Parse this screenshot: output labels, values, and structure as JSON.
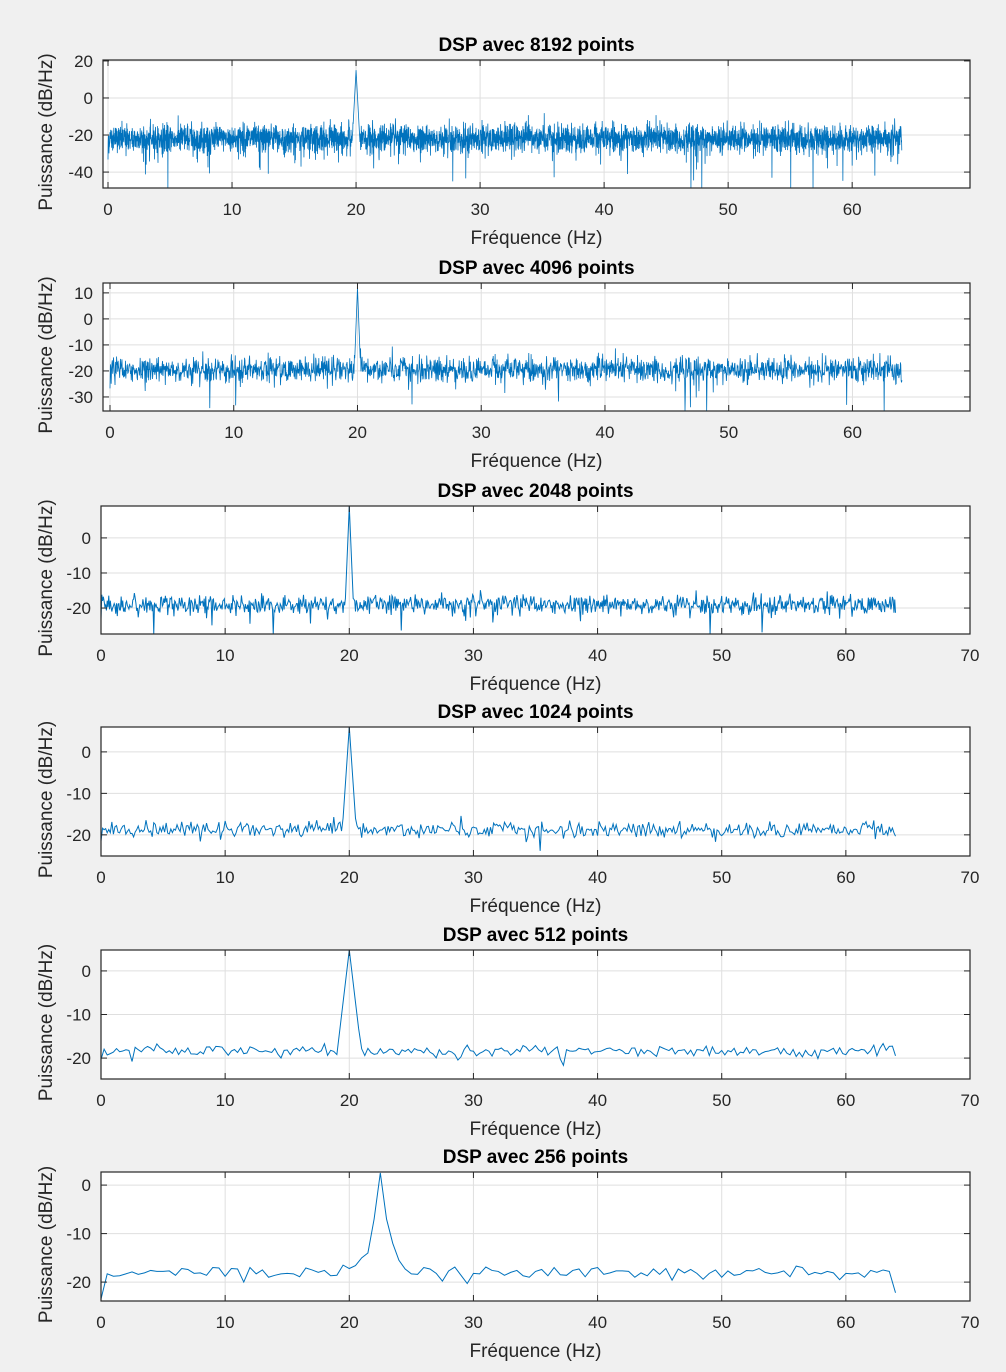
{
  "chart_data": [
    {
      "type": "line",
      "title": "DSP avec 8192 points",
      "xlabel": "Fréquence (Hz)",
      "ylabel": "Puissance (dB/Hz)",
      "xlim": [
        0,
        69.5
      ],
      "ylim": [
        -48.6,
        20.5
      ],
      "xticks": [
        0,
        10,
        20,
        30,
        40,
        50,
        60
      ],
      "yticks": [
        20,
        0,
        -20,
        -40
      ],
      "grid": true,
      "color": "#0072BD",
      "series": {
        "name": "DSP 8192",
        "x_start": 0,
        "x_end": 64,
        "n_points": 4097,
        "noise_floor_db": -22,
        "noise_spread_db": 7,
        "peak_freq_hz": 20,
        "peak_db": 15
      }
    },
    {
      "type": "line",
      "title": "DSP avec 4096 points",
      "xlabel": "Fréquence (Hz)",
      "ylabel": "Puissance (dB/Hz)",
      "xlim": [
        0,
        69.5
      ],
      "ylim": [
        -35.4,
        13.8
      ],
      "xticks": [
        0,
        10,
        20,
        30,
        40,
        50,
        60
      ],
      "yticks": [
        10,
        0,
        -10,
        -20,
        -30
      ],
      "grid": true,
      "color": "#0072BD",
      "series": {
        "name": "DSP 4096",
        "x_start": 0,
        "x_end": 64,
        "n_points": 2049,
        "noise_floor_db": -19.5,
        "noise_spread_db": 4.5,
        "peak_freq_hz": 20,
        "peak_db": 12
      }
    },
    {
      "type": "line",
      "title": "DSP avec 2048 points",
      "xlabel": "Fréquence (Hz)",
      "ylabel": "Puissance (dB/Hz)",
      "xlim": [
        0,
        70
      ],
      "ylim": [
        -27.4,
        9.1
      ],
      "xticks": [
        0,
        10,
        20,
        30,
        40,
        50,
        60,
        70
      ],
      "yticks": [
        0,
        -10,
        -20
      ],
      "grid": true,
      "color": "#0072BD",
      "series": {
        "name": "DSP 2048",
        "x_start": 0,
        "x_end": 64,
        "n_points": 1025,
        "noise_floor_db": -19,
        "noise_spread_db": 2.6,
        "peak_freq_hz": 20,
        "peak_db": 9
      }
    },
    {
      "type": "line",
      "title": "DSP avec 1024 points",
      "xlabel": "Fréquence (Hz)",
      "ylabel": "Puissance (dB/Hz)",
      "xlim": [
        0,
        70
      ],
      "ylim": [
        -25.1,
        6.0
      ],
      "xticks": [
        0,
        10,
        20,
        30,
        40,
        50,
        60,
        70
      ],
      "yticks": [
        0,
        -10,
        -20
      ],
      "grid": true,
      "color": "#0072BD",
      "series": {
        "name": "DSP 1024",
        "x_start": 0,
        "x_end": 64,
        "n_points": 513,
        "noise_floor_db": -18.8,
        "noise_spread_db": 1.7,
        "peak_freq_hz": 20,
        "peak_db": 6
      }
    },
    {
      "type": "line",
      "title": "DSP avec 512 points",
      "xlabel": "Fréquence (Hz)",
      "ylabel": "Puissance (dB/Hz)",
      "xlim": [
        0,
        70
      ],
      "ylim": [
        -24.8,
        4.8
      ],
      "xticks": [
        0,
        10,
        20,
        30,
        40,
        50,
        60,
        70
      ],
      "yticks": [
        0,
        -10,
        -20
      ],
      "grid": true,
      "color": "#0072BD",
      "series": {
        "name": "DSP 512",
        "x_start": 0,
        "x_end": 64,
        "n_points": 257,
        "noise_floor_db": -18.4,
        "noise_spread_db": 1.2,
        "peak_freq_hz": 20,
        "peak_db": 4.8
      }
    },
    {
      "type": "line",
      "title": "DSP avec 256 points",
      "xlabel": "Fréquence (Hz)",
      "ylabel": "Puissance (dB/Hz)",
      "xlim": [
        0,
        70
      ],
      "ylim": [
        -23.9,
        2.7
      ],
      "xticks": [
        0,
        10,
        20,
        30,
        40,
        50,
        60,
        70
      ],
      "yticks": [
        0,
        -10,
        -20
      ],
      "grid": true,
      "color": "#0072BD",
      "series": {
        "name": "DSP 256",
        "x_start": 0,
        "x_end": 64,
        "n_points": 129,
        "values": [
          -23.5,
          -18.3,
          -18.8,
          -18.7,
          -18.3,
          -17.9,
          -18.4,
          -18.1,
          -17.6,
          -17.8,
          -17.8,
          -17.7,
          -18.6,
          -17.2,
          -17.4,
          -18.2,
          -18.1,
          -18.6,
          -17.0,
          -17.1,
          -18.8,
          -17.2,
          -17.3,
          -20.0,
          -17.0,
          -18.3,
          -17.5,
          -19.0,
          -18.6,
          -18.3,
          -18.2,
          -18.3,
          -18.9,
          -17.1,
          -17.5,
          -18.0,
          -17.6,
          -18.7,
          -18.6,
          -16.5,
          -17.2,
          -16.6,
          -15.0,
          -14.0,
          -7.0,
          2.5,
          -7.0,
          -12.0,
          -15.5,
          -17.3,
          -18.3,
          -18.4,
          -17.0,
          -17.3,
          -18.2,
          -19.8,
          -17.7,
          -16.9,
          -18.6,
          -20.3,
          -18.2,
          -18.3,
          -16.9,
          -17.6,
          -17.8,
          -18.6,
          -18.0,
          -17.6,
          -18.7,
          -19.0,
          -17.8,
          -17.4,
          -18.7,
          -17.0,
          -18.5,
          -18.6,
          -17.6,
          -17.3,
          -18.9,
          -17.3,
          -17.0,
          -18.4,
          -18.1,
          -17.7,
          -17.7,
          -17.8,
          -19.0,
          -18.1,
          -18.7,
          -17.3,
          -18.4,
          -17.2,
          -19.6,
          -17.3,
          -18.1,
          -17.4,
          -18.2,
          -19.4,
          -18.2,
          -17.5,
          -19.0,
          -17.7,
          -18.6,
          -18.4,
          -17.6,
          -17.7,
          -17.2,
          -18.0,
          -18.3,
          -18.1,
          -17.7,
          -18.9,
          -16.7,
          -17.0,
          -18.5,
          -18.0,
          -18.3,
          -17.8,
          -18.1,
          -19.5,
          -18.2,
          -18.3,
          -18.1,
          -19.0,
          -17.6,
          -18.0,
          -17.5,
          -17.8,
          -22.2
        ]
      }
    }
  ]
}
